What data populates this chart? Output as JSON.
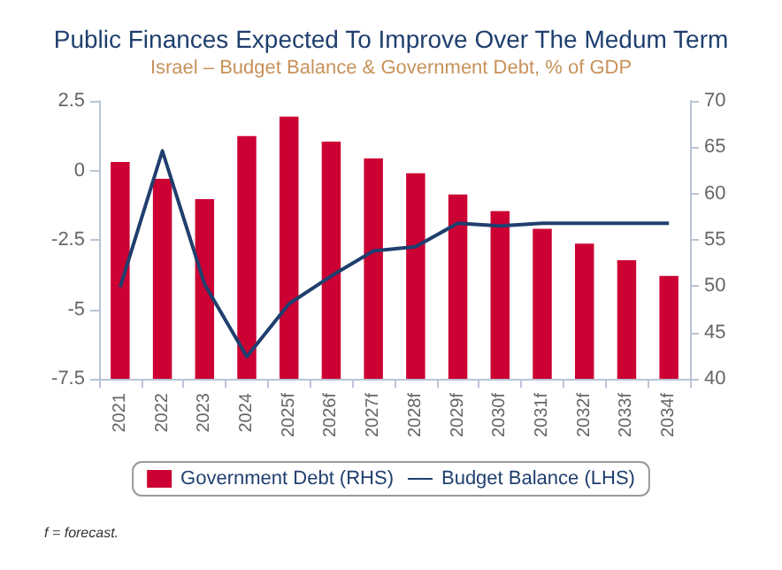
{
  "chart_data": {
    "type": "bar",
    "title": "Public Finances Expected To Improve Over The Medum Term",
    "subtitle": "Israel – Budget Balance & Government Debt, % of GDP",
    "categories": [
      "2021",
      "2022",
      "2023",
      "2024",
      "2025f",
      "2026f",
      "2027f",
      "2028f",
      "2029f",
      "2030f",
      "2031f",
      "2032f",
      "2033f",
      "2034f"
    ],
    "series": [
      {
        "name": "Government Debt (RHS)",
        "axis": "y2",
        "color": "#cc0033",
        "values": [
          63.4,
          61.6,
          59.4,
          66.2,
          68.3,
          65.6,
          63.8,
          62.2,
          59.9,
          58.1,
          56.2,
          54.6,
          52.8,
          51.1
        ]
      },
      {
        "name": "Budget Balance (LHS)",
        "type": "line",
        "axis": "y",
        "color": "#1f3f6e",
        "values": [
          -4.2,
          0.7,
          -4.1,
          -6.7,
          -4.8,
          -3.8,
          -2.9,
          -2.75,
          -1.9,
          -2.0,
          -1.9,
          -1.9,
          -1.9,
          -1.9
        ]
      }
    ],
    "ylim": [
      -7.5,
      2.5
    ],
    "yticks": [
      -7.5,
      -5,
      -2.5,
      0,
      2.5
    ],
    "y2lim": [
      40,
      70
    ],
    "y2ticks": [
      40,
      45,
      50,
      55,
      60,
      65,
      70
    ],
    "grid": false,
    "legend": "bottom",
    "marker": "none",
    "line_style": "solid",
    "annotations": [
      "f = forecast."
    ]
  }
}
